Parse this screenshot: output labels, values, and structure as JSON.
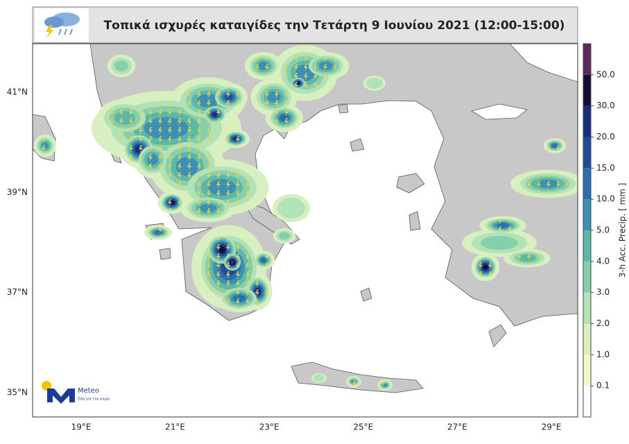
{
  "header": {
    "title": "Τοπικά ισχυρές καταιγίδες την Τετάρτη 9 Ιουνίου 2021 (12:00-15:00)"
  },
  "map": {
    "lon_labels": [
      "19°E",
      "21°E",
      "23°E",
      "25°E",
      "27°E",
      "29°E"
    ],
    "lat_labels": [
      "41°N",
      "39°N",
      "37°N",
      "35°N"
    ]
  },
  "colorbar": {
    "title": "3-h Acc. Precip. [ mm ]",
    "labels": [
      "0.1",
      "1.0",
      "2.0",
      "3.0",
      "4.0",
      "5.0",
      "10.0",
      "15.0",
      "20.0",
      "30.0",
      "50.0"
    ],
    "colors": [
      "#ffffff",
      "#f4f6cc",
      "#d8f0c0",
      "#b3e2b6",
      "#86cfad",
      "#5bb8a8",
      "#3c90b6",
      "#2a6eaf",
      "#1f4c99",
      "#1c2c7c",
      "#170d36",
      "#5b2a58"
    ]
  },
  "logo": {
    "name": "Meteo",
    "slogan": "Όλα για τον καιρό"
  }
}
